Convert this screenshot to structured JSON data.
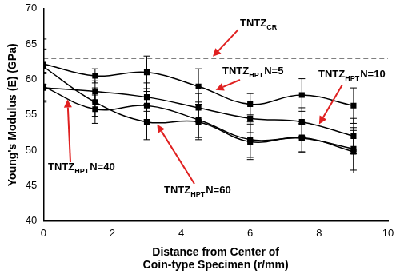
{
  "chart_data": {
    "type": "line",
    "x_label": [
      "Distance from Center of",
      "Coin-type Specimen (r/mm)"
    ],
    "y_label": "Young's Modulus (E) (GPa)",
    "x": [
      0,
      1.5,
      3,
      4.5,
      6,
      7.5,
      9
    ],
    "series": [
      {
        "name": {
          "text": "TNTZ",
          "sub": "HPT",
          "suffix": "N=5"
        },
        "color": "#000000",
        "marker": "square",
        "line_style": "solid",
        "values": [
          62.2,
          60.5,
          61.0,
          59.0,
          56.5,
          57.8,
          56.3
        ],
        "errors": [
          3.5,
          1.0,
          2.3,
          2.5,
          1.5,
          2.3,
          2.5
        ]
      },
      {
        "name": {
          "text": "TNTZ",
          "sub": "HPT",
          "suffix": "N=10"
        },
        "color": "#000000",
        "marker": "square",
        "line_style": "solid",
        "values": [
          58.8,
          58.3,
          57.5,
          56.0,
          54.5,
          54.0,
          52.0
        ],
        "errors": [
          2.0,
          1.5,
          2.0,
          2.0,
          2.0,
          2.0,
          2.5
        ]
      },
      {
        "name": {
          "text": "TNTZ",
          "sub": "HPT",
          "suffix": "N=40"
        },
        "color": "#000000",
        "marker": "square",
        "line_style": "solid",
        "values": [
          59.0,
          55.8,
          56.3,
          54.3,
          51.5,
          51.7,
          50.2
        ],
        "errors": [
          2.0,
          2.0,
          2.0,
          2.5,
          2.5,
          2.0,
          3.0
        ]
      },
      {
        "name": {
          "text": "TNTZ",
          "sub": "HPT",
          "suffix": "N=60"
        },
        "color": "#000000",
        "marker": "square",
        "line_style": "solid",
        "values": [
          61.8,
          56.8,
          54.0,
          54.0,
          51.2,
          51.8,
          49.8
        ],
        "errors": [
          2.5,
          2.0,
          2.5,
          2.5,
          2.5,
          2.0,
          3.0
        ]
      }
    ],
    "reference_lines": [
      {
        "name": {
          "text": "TNTZ",
          "sub": "CR"
        },
        "y": 63,
        "color": "#000000",
        "line_style": "dashed"
      }
    ],
    "xlim": [
      0,
      10
    ],
    "xticks": [
      0,
      2,
      4,
      6,
      8,
      10
    ],
    "ylim": [
      40,
      70
    ],
    "yticks": [
      40,
      45,
      50,
      55,
      60,
      65,
      70
    ],
    "grid": false
  }
}
